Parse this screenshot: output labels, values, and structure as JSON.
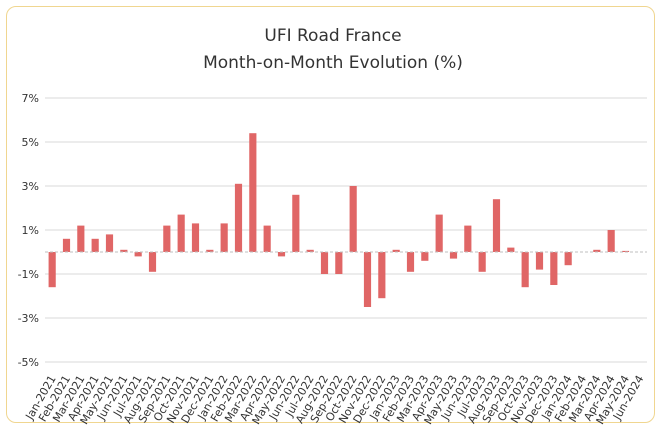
{
  "chart_data": {
    "type": "bar",
    "title": "UFI Road France",
    "subtitle": "Month-on-Month Evolution (%)",
    "xlabel": "",
    "ylabel": "",
    "ylim": [
      -7,
      8
    ],
    "yticks": [
      7,
      5,
      3,
      1,
      -1,
      -3,
      -5
    ],
    "ytick_labels": [
      "7%",
      "5%",
      "3%",
      "1%",
      "-1%",
      "-3%",
      "-5%"
    ],
    "grid": true,
    "bar_color": "#e06666",
    "categories": [
      "Jan-2021",
      "Feb-2021",
      "Mar-2021",
      "Apr-2021",
      "May-2021",
      "Jun-2021",
      "Jul-2021",
      "Aug-2021",
      "Sep-2021",
      "Oct-2021",
      "Nov-2021",
      "Dec-2021",
      "Jan-2022",
      "Feb-2022",
      "Mar-2022",
      "Apr-2022",
      "May-2022",
      "Jun-2022",
      "Jul-2022",
      "Aug-2022",
      "Sep-2022",
      "Oct-2022",
      "Nov-2022",
      "Dec-2022",
      "Jan-2023",
      "Feb-2023",
      "Mar-2023",
      "Apr-2023",
      "May-2023",
      "Jun-2023",
      "Jul-2023",
      "Aug-2023",
      "Sep-2023",
      "Oct-2023",
      "Nov-2023",
      "Dec-2023",
      "Jan-2024",
      "Feb-2024",
      "Mar-2024",
      "Apr-2024",
      "May-2024",
      "Jun-2024"
    ],
    "values": [
      -1.6,
      0.6,
      1.2,
      0.6,
      0.8,
      0.1,
      -0.2,
      -0.9,
      1.2,
      1.7,
      1.3,
      0.1,
      1.3,
      3.1,
      5.4,
      1.2,
      -0.2,
      2.6,
      0.1,
      -1.0,
      -1.0,
      3.0,
      -2.5,
      -2.1,
      0.1,
      -0.9,
      -0.4,
      1.7,
      -0.3,
      1.2,
      -0.9,
      2.4,
      0.2,
      -1.6,
      -0.8,
      -1.5,
      -0.6,
      0.0,
      0.1,
      1.0,
      0.05,
      0.0
    ]
  }
}
